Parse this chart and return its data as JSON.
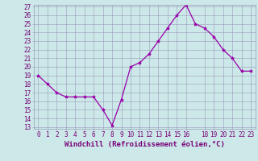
{
  "x": [
    0,
    1,
    2,
    3,
    4,
    5,
    6,
    7,
    8,
    9,
    10,
    11,
    12,
    13,
    14,
    15,
    16,
    17,
    18,
    19,
    20,
    21,
    22,
    23
  ],
  "y": [
    19,
    18,
    17,
    16.5,
    16.5,
    16.5,
    16.5,
    15,
    13.2,
    16.2,
    20,
    20.5,
    21.5,
    23,
    24.5,
    26,
    27.2,
    25,
    24.5,
    23.5,
    22,
    21,
    19.5,
    19.5
  ],
  "xlabel": "Windchill (Refroidissement éolien,°C)",
  "ylim": [
    13,
    27
  ],
  "xlim": [
    -0.5,
    23.5
  ],
  "yticks": [
    13,
    14,
    15,
    16,
    17,
    18,
    19,
    20,
    21,
    22,
    23,
    24,
    25,
    26,
    27
  ],
  "xticks": [
    0,
    1,
    2,
    3,
    4,
    5,
    6,
    7,
    8,
    9,
    10,
    11,
    12,
    13,
    14,
    15,
    16,
    18,
    19,
    20,
    21,
    22,
    23
  ],
  "line_color": "#9900aa",
  "marker": "*",
  "bg_color": "#cce8e8",
  "grid_color": "#9999bb",
  "tick_label_color": "#770077",
  "xlabel_color": "#770077",
  "xlabel_fontsize": 6.5,
  "tick_fontsize": 5.5
}
